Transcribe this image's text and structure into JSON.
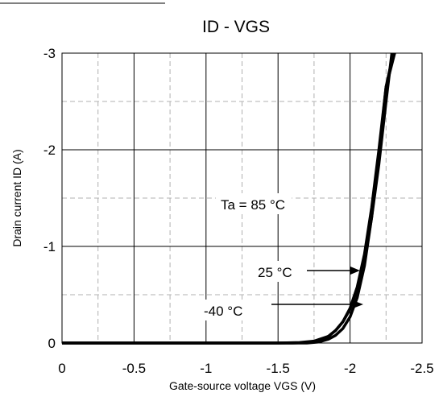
{
  "chart_data": {
    "type": "line",
    "title": "ID - VGS",
    "xlabel": "Gate-source voltage VGS (V)",
    "ylabel": "Drain current ID (A)",
    "xlim": [
      0,
      -2.5
    ],
    "ylim": [
      0,
      -3
    ],
    "x_ticks": [
      0,
      -0.5,
      -1,
      -1.5,
      -2,
      -2.5
    ],
    "x_tick_labels": [
      "0",
      "-0.5",
      "-1",
      "-1.5",
      "-2",
      "-2.5"
    ],
    "y_ticks": [
      0,
      -1,
      -2,
      -3
    ],
    "y_tick_labels": [
      "0",
      "-1",
      "-2",
      "-3"
    ],
    "grid": {
      "major": "solid",
      "minor": "dashed"
    },
    "line_color": "#000000",
    "series": [
      {
        "name": "Ta = 85 °C",
        "x": [
          0,
          -1.0,
          -1.5,
          -1.65,
          -1.75,
          -1.85,
          -1.9,
          -1.95,
          -2.0,
          -2.05,
          -2.1,
          -2.15,
          -2.2,
          -2.25,
          -2.29
        ],
        "y": [
          0,
          0,
          0,
          -0.005,
          -0.02,
          -0.07,
          -0.13,
          -0.22,
          -0.35,
          -0.55,
          -0.85,
          -1.3,
          -1.85,
          -2.5,
          -3.0
        ]
      },
      {
        "name": "25 °C",
        "x": [
          0,
          -1.0,
          -1.6,
          -1.7,
          -1.8,
          -1.85,
          -1.9,
          -1.95,
          -2.0,
          -2.05,
          -2.1,
          -2.15,
          -2.2,
          -2.25,
          -2.3
        ],
        "y": [
          0,
          0,
          0,
          -0.005,
          -0.03,
          -0.07,
          -0.13,
          -0.22,
          -0.36,
          -0.58,
          -0.92,
          -1.4,
          -2.0,
          -2.65,
          -3.0
        ]
      },
      {
        "name": "-40 °C",
        "x": [
          0,
          -1.0,
          -1.7,
          -1.78,
          -1.85,
          -1.9,
          -1.95,
          -2.0,
          -2.05,
          -2.1,
          -2.15,
          -2.2,
          -2.25,
          -2.31
        ],
        "y": [
          0,
          0,
          0,
          -0.01,
          -0.04,
          -0.08,
          -0.15,
          -0.27,
          -0.47,
          -0.8,
          -1.3,
          -1.95,
          -2.65,
          -3.0
        ]
      }
    ],
    "annotations": [
      {
        "text": "Ta = 85 °C"
      },
      {
        "text": "25 °C"
      },
      {
        "text": "-40 °C"
      }
    ]
  }
}
